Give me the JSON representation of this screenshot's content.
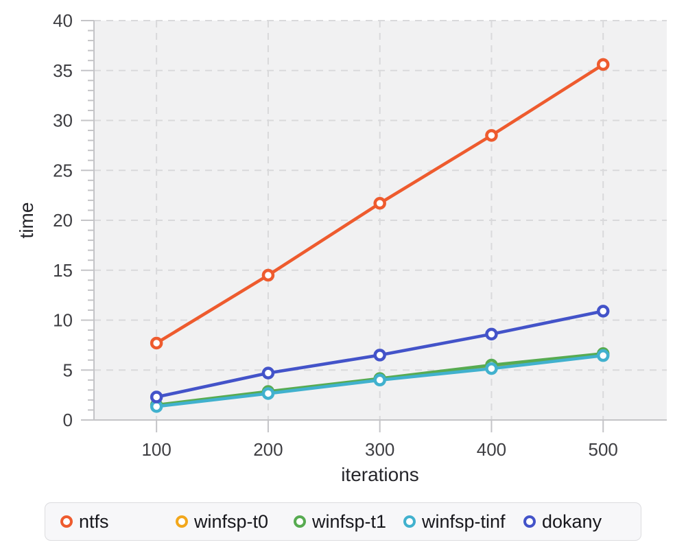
{
  "chart_data": {
    "type": "line",
    "title": "",
    "xlabel": "iterations",
    "ylabel": "time",
    "x": [
      100,
      200,
      300,
      400,
      500
    ],
    "x_ticks": [
      100,
      200,
      300,
      400,
      500
    ],
    "y_ticks": [
      0,
      5,
      10,
      15,
      20,
      25,
      30,
      35,
      40
    ],
    "xlim": [
      44,
      557
    ],
    "ylim": [
      0,
      40
    ],
    "y_minor_step": 1,
    "grid": true,
    "grid_style": "dashed",
    "legend_position": "bottom",
    "panel_bg": "#f1f1f2",
    "grid_color": "#d9d9db",
    "axis_color": "#c4c4c7",
    "tick_label_color": "#3e3e42",
    "series": [
      {
        "name": "ntfs",
        "color": "#ee5b2e",
        "values": [
          7.7,
          14.5,
          21.7,
          28.5,
          35.6
        ]
      },
      {
        "name": "winfsp-t0",
        "color": "#f2a71c",
        "values": [
          1.45,
          2.8,
          4.1,
          5.3,
          6.55
        ]
      },
      {
        "name": "winfsp-t1",
        "color": "#57ab51",
        "values": [
          1.5,
          2.85,
          4.15,
          5.5,
          6.65
        ]
      },
      {
        "name": "winfsp-tinf",
        "color": "#41b1ce",
        "values": [
          1.35,
          2.65,
          4.0,
          5.15,
          6.45
        ]
      },
      {
        "name": "dokany",
        "color": "#4353c9",
        "values": [
          2.3,
          4.7,
          6.5,
          8.6,
          10.9
        ]
      }
    ]
  }
}
